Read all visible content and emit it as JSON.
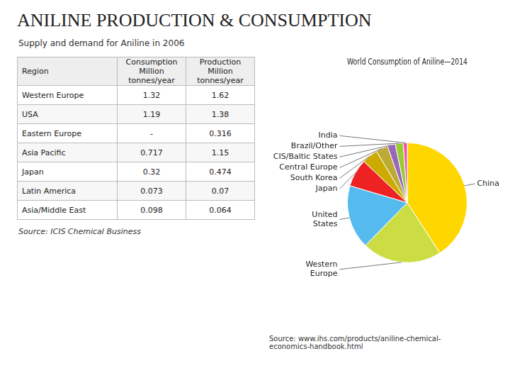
{
  "chart_data": [
    {
      "type": "table",
      "title": "ANILINE PRODUCTION & CONSUMPTION",
      "subtitle": "Supply and demand for Aniline in 2006",
      "columns": [
        "Region",
        "Consumption\nMillion tonnes/year",
        "Production\nMillion tonnes/year"
      ],
      "rows": [
        [
          "Western Europe",
          "1.32",
          "1.62"
        ],
        [
          "USA",
          "1.19",
          "1.38"
        ],
        [
          "Eastern Europe",
          "-",
          "0.316"
        ],
        [
          "Asia Pacific",
          "0.717",
          "1.15"
        ],
        [
          "Japan",
          "0.32",
          "0.474"
        ],
        [
          "Latin America",
          "0.073",
          "0.07"
        ],
        [
          "Asia/Middle East",
          "0.098",
          "0.064"
        ]
      ],
      "annotations": [
        "Source: ICIS Chemical Business"
      ]
    },
    {
      "type": "pie",
      "title": "World Consumption of Aniline—2014",
      "categories": [
        "China",
        "Western\nEurope",
        "United\nStates",
        "Japan",
        "South Korea",
        "Central Europe",
        "CIS/Baltic States",
        "Brazil/Other",
        "India"
      ],
      "values": [
        38,
        20,
        16,
        7,
        4,
        3,
        2,
        2,
        1
      ],
      "colors": [
        "#FFD700",
        "#CCDD44",
        "#55BBEE",
        "#EE2222",
        "#CCAA00",
        "#BBAA33",
        "#9966BB",
        "#99CC33",
        "#EE55AA"
      ],
      "annotations": [
        "Source: www.ihs.com/products/aniline-chemical-\neconomics-handbook.html"
      ]
    }
  ]
}
